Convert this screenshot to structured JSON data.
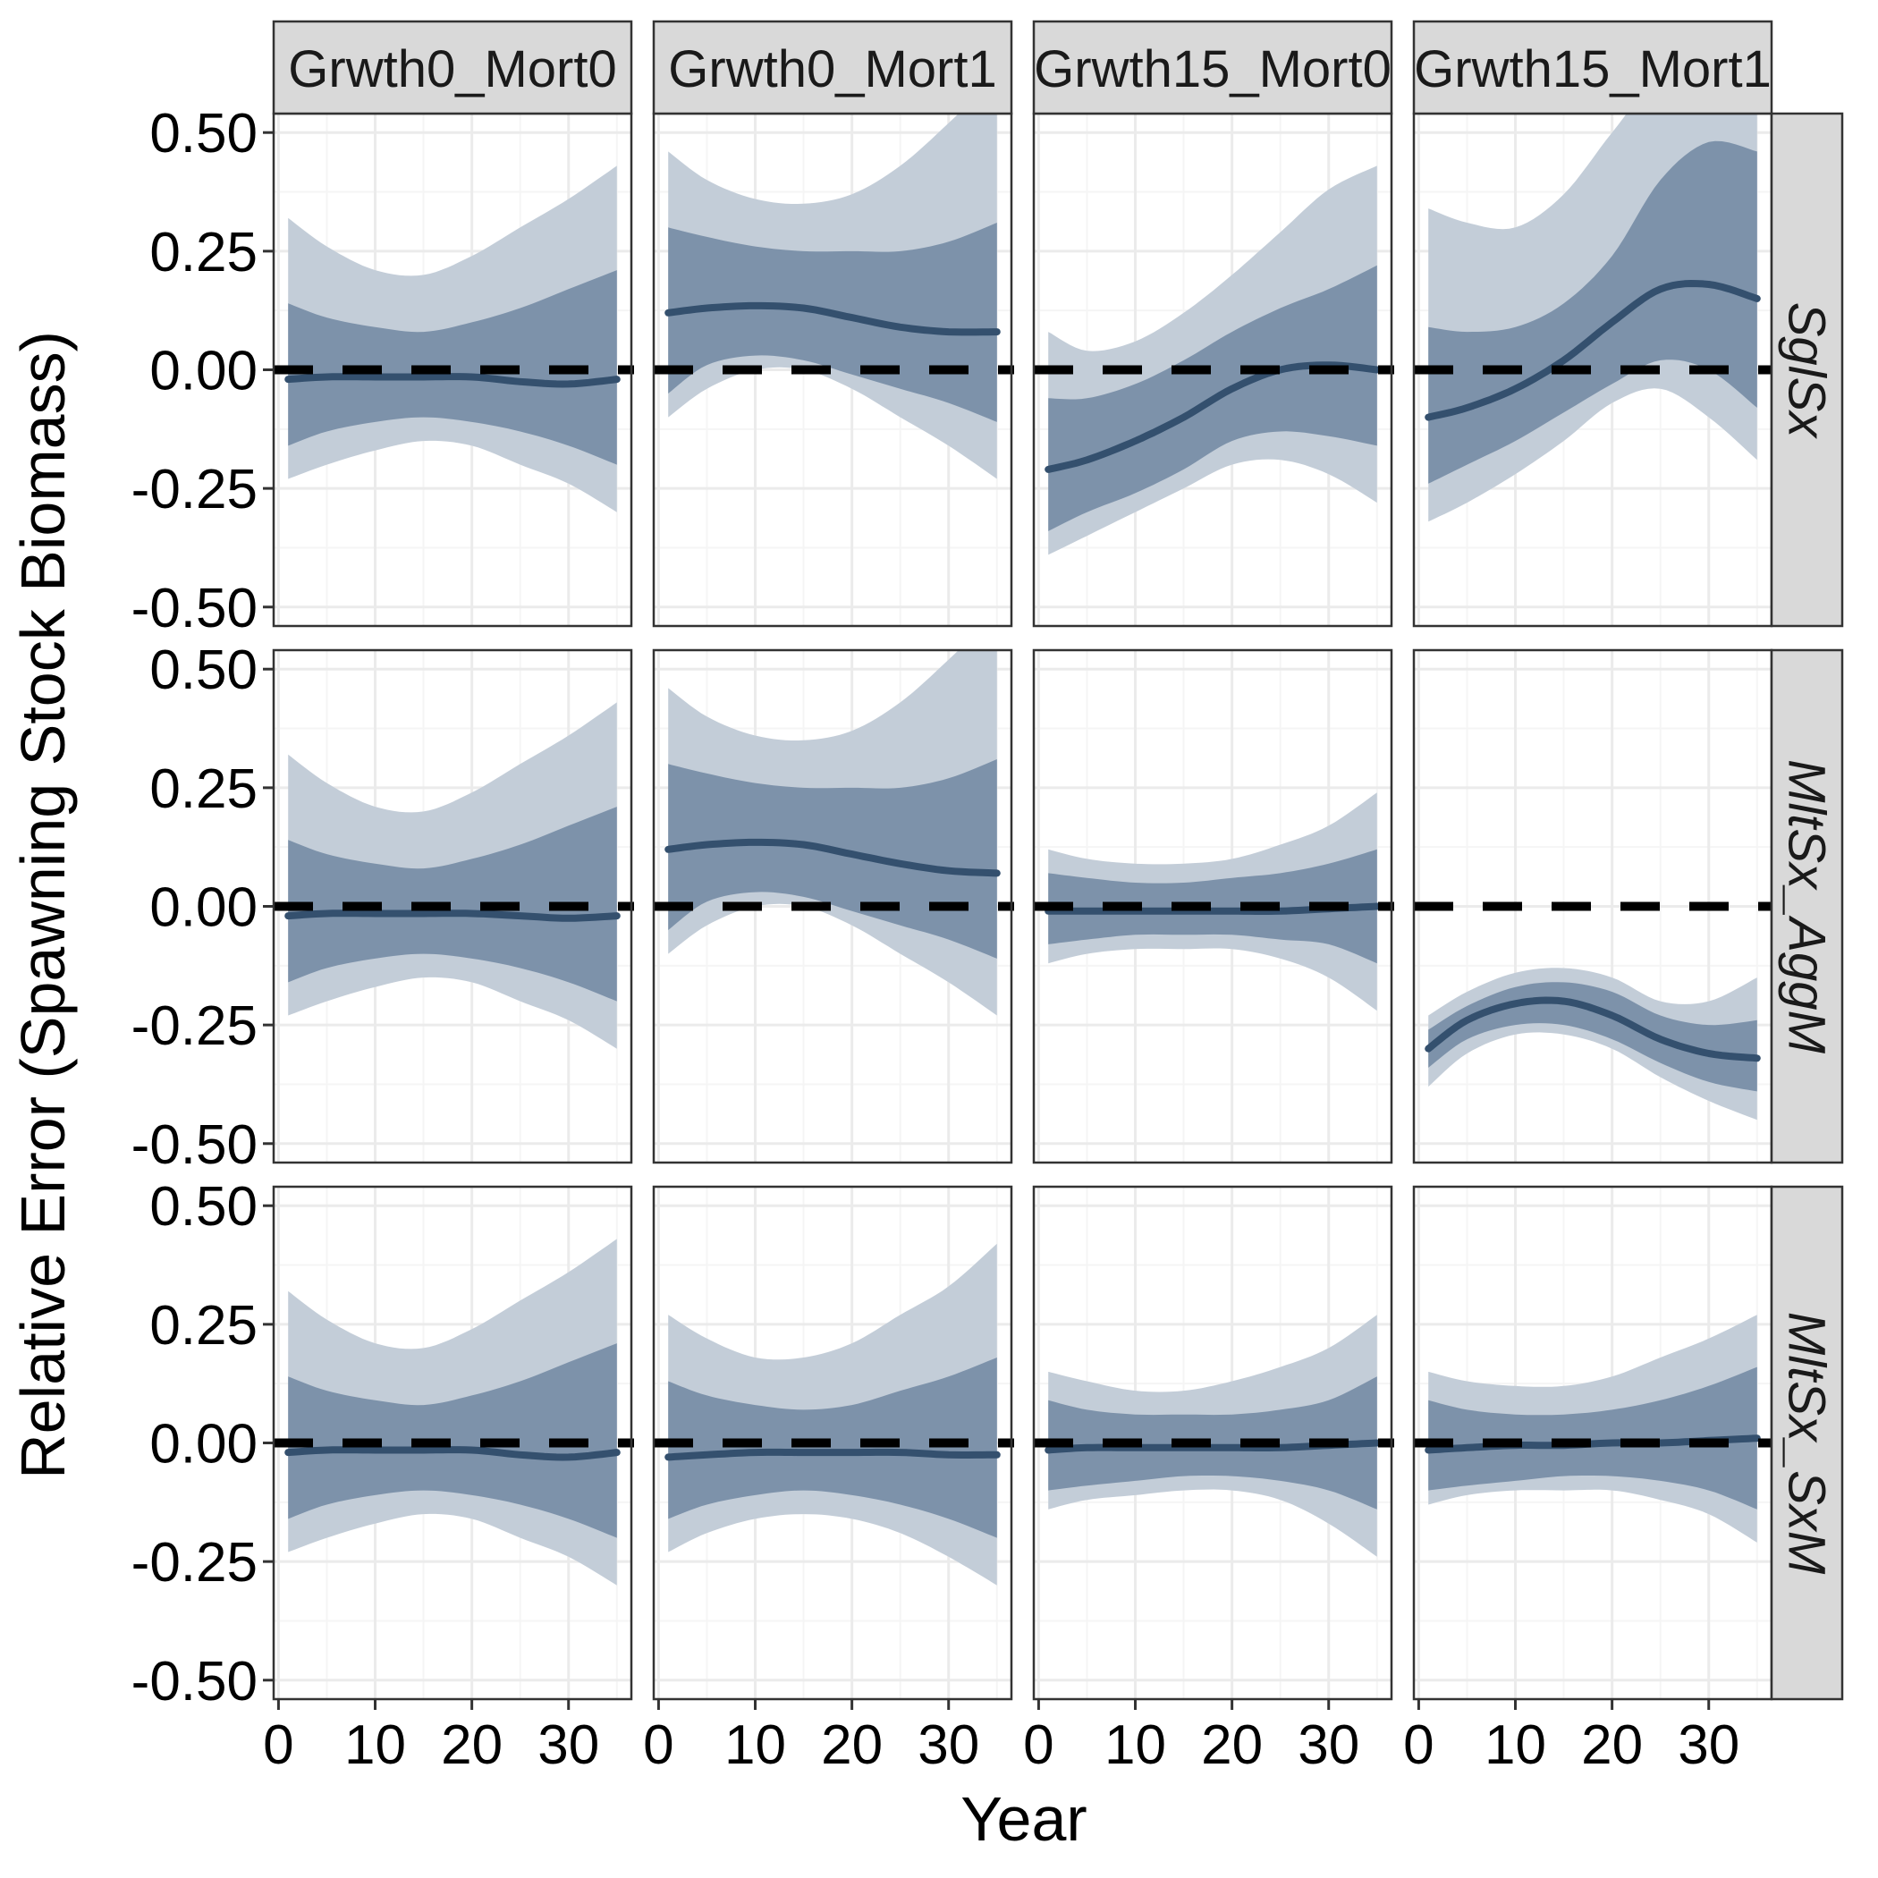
{
  "chart_data": {
    "type": "area",
    "xlabel": "Year",
    "ylabel": "Relative Error (Spawning Stock Biomass)",
    "x_ticks": [
      0,
      10,
      20,
      30
    ],
    "y_ticks": [
      -0.5,
      -0.25,
      0,
      0.25,
      0.5
    ],
    "y_tick_labels": [
      "-0.50",
      "-0.25",
      "0.00",
      "0.25",
      "0.50"
    ],
    "xlim": [
      -0.5,
      36.5
    ],
    "ylim": [
      -0.54,
      0.54
    ],
    "reference_line": 0,
    "grid": true,
    "colors": {
      "line": "#34506e",
      "inner_band": "#7d92aa",
      "outer_band": "#c3cdd8",
      "reference": "#000000",
      "strip_fill": "#d9d9d9",
      "grid_major": "#ebebeb",
      "grid_minor": "#f5f5f5"
    },
    "column_strips": [
      "Grwth0_Mort0",
      "Grwth0_Mort1",
      "Grwth15_Mort0",
      "Grwth15_Mort1"
    ],
    "row_strips": [
      "SglSx",
      "MltSx_AggM",
      "MltSx_SxM"
    ],
    "band_x": [
      1,
      5,
      10,
      15,
      20,
      25,
      30,
      35
    ],
    "panels": [
      {
        "row": 0,
        "col": 0,
        "median": [
          -0.02,
          -0.015,
          -0.015,
          -0.015,
          -0.015,
          -0.025,
          -0.03,
          -0.02
        ],
        "inner_low": [
          -0.16,
          -0.13,
          -0.11,
          -0.1,
          -0.11,
          -0.13,
          -0.16,
          -0.2
        ],
        "inner_high": [
          0.14,
          0.11,
          0.09,
          0.08,
          0.1,
          0.13,
          0.17,
          0.21
        ],
        "outer_low": [
          -0.23,
          -0.2,
          -0.17,
          -0.15,
          -0.16,
          -0.2,
          -0.24,
          -0.3
        ],
        "outer_high": [
          0.32,
          0.26,
          0.21,
          0.2,
          0.24,
          0.3,
          0.36,
          0.43
        ]
      },
      {
        "row": 0,
        "col": 1,
        "median": [
          0.12,
          0.13,
          0.135,
          0.13,
          0.11,
          0.09,
          0.08,
          0.08
        ],
        "inner_low": [
          -0.05,
          0.01,
          0.03,
          0.02,
          -0.01,
          -0.04,
          -0.07,
          -0.11
        ],
        "inner_high": [
          0.3,
          0.28,
          0.26,
          0.25,
          0.25,
          0.25,
          0.27,
          0.31
        ],
        "outer_low": [
          -0.1,
          -0.04,
          0.0,
          0.0,
          -0.04,
          -0.1,
          -0.16,
          -0.23
        ],
        "outer_high": [
          0.46,
          0.4,
          0.36,
          0.35,
          0.37,
          0.43,
          0.52,
          0.62
        ]
      },
      {
        "row": 0,
        "col": 2,
        "median": [
          -0.21,
          -0.19,
          -0.15,
          -0.1,
          -0.04,
          0.0,
          0.01,
          0.0
        ],
        "inner_low": [
          -0.34,
          -0.3,
          -0.26,
          -0.21,
          -0.15,
          -0.13,
          -0.14,
          -0.16
        ],
        "inner_high": [
          -0.06,
          -0.06,
          -0.03,
          0.02,
          0.08,
          0.13,
          0.17,
          0.22
        ],
        "outer_low": [
          -0.39,
          -0.35,
          -0.3,
          -0.25,
          -0.2,
          -0.19,
          -0.22,
          -0.28
        ],
        "outer_high": [
          0.08,
          0.04,
          0.06,
          0.12,
          0.2,
          0.29,
          0.38,
          0.43
        ]
      },
      {
        "row": 0,
        "col": 3,
        "median": [
          -0.1,
          -0.08,
          -0.04,
          0.02,
          0.1,
          0.17,
          0.18,
          0.15
        ],
        "inner_low": [
          -0.24,
          -0.2,
          -0.15,
          -0.09,
          -0.03,
          0.02,
          0.0,
          -0.08
        ],
        "inner_high": [
          0.09,
          0.08,
          0.09,
          0.14,
          0.24,
          0.4,
          0.48,
          0.46
        ],
        "outer_low": [
          -0.32,
          -0.28,
          -0.22,
          -0.15,
          -0.07,
          -0.04,
          -0.1,
          -0.19
        ],
        "outer_high": [
          0.34,
          0.31,
          0.3,
          0.37,
          0.5,
          0.62,
          0.64,
          0.63
        ]
      },
      {
        "row": 1,
        "col": 0,
        "median": [
          -0.02,
          -0.015,
          -0.015,
          -0.015,
          -0.015,
          -0.02,
          -0.025,
          -0.02
        ],
        "inner_low": [
          -0.16,
          -0.13,
          -0.11,
          -0.1,
          -0.11,
          -0.13,
          -0.16,
          -0.2
        ],
        "inner_high": [
          0.14,
          0.11,
          0.09,
          0.08,
          0.1,
          0.13,
          0.17,
          0.21
        ],
        "outer_low": [
          -0.23,
          -0.2,
          -0.17,
          -0.15,
          -0.16,
          -0.2,
          -0.24,
          -0.3
        ],
        "outer_high": [
          0.32,
          0.26,
          0.21,
          0.2,
          0.24,
          0.3,
          0.36,
          0.43
        ]
      },
      {
        "row": 1,
        "col": 1,
        "median": [
          0.12,
          0.13,
          0.135,
          0.13,
          0.11,
          0.09,
          0.075,
          0.07
        ],
        "inner_low": [
          -0.05,
          0.01,
          0.03,
          0.02,
          -0.01,
          -0.04,
          -0.07,
          -0.11
        ],
        "inner_high": [
          0.3,
          0.28,
          0.26,
          0.25,
          0.25,
          0.25,
          0.27,
          0.31
        ],
        "outer_low": [
          -0.1,
          -0.04,
          0.0,
          0.0,
          -0.04,
          -0.1,
          -0.16,
          -0.23
        ],
        "outer_high": [
          0.46,
          0.4,
          0.36,
          0.35,
          0.37,
          0.43,
          0.52,
          0.62
        ]
      },
      {
        "row": 1,
        "col": 2,
        "median": [
          -0.01,
          -0.01,
          -0.01,
          -0.01,
          -0.01,
          -0.01,
          -0.005,
          0.0
        ],
        "inner_low": [
          -0.08,
          -0.07,
          -0.06,
          -0.06,
          -0.06,
          -0.07,
          -0.08,
          -0.12
        ],
        "inner_high": [
          0.07,
          0.06,
          0.05,
          0.05,
          0.06,
          0.07,
          0.09,
          0.12
        ],
        "outer_low": [
          -0.12,
          -0.1,
          -0.09,
          -0.09,
          -0.09,
          -0.11,
          -0.15,
          -0.22
        ],
        "outer_high": [
          0.12,
          0.1,
          0.09,
          0.09,
          0.1,
          0.13,
          0.17,
          0.24
        ]
      },
      {
        "row": 1,
        "col": 3,
        "median": [
          -0.3,
          -0.24,
          -0.205,
          -0.2,
          -0.23,
          -0.28,
          -0.31,
          -0.32
        ],
        "inner_low": [
          -0.34,
          -0.28,
          -0.25,
          -0.25,
          -0.28,
          -0.33,
          -0.37,
          -0.39
        ],
        "inner_high": [
          -0.26,
          -0.21,
          -0.17,
          -0.16,
          -0.18,
          -0.23,
          -0.25,
          -0.24
        ],
        "outer_low": [
          -0.38,
          -0.31,
          -0.27,
          -0.27,
          -0.3,
          -0.36,
          -0.41,
          -0.45
        ],
        "outer_high": [
          -0.23,
          -0.18,
          -0.14,
          -0.13,
          -0.15,
          -0.2,
          -0.2,
          -0.15
        ]
      },
      {
        "row": 2,
        "col": 0,
        "median": [
          -0.02,
          -0.015,
          -0.015,
          -0.015,
          -0.015,
          -0.025,
          -0.03,
          -0.02
        ],
        "inner_low": [
          -0.16,
          -0.13,
          -0.11,
          -0.1,
          -0.11,
          -0.13,
          -0.16,
          -0.2
        ],
        "inner_high": [
          0.14,
          0.11,
          0.09,
          0.08,
          0.1,
          0.13,
          0.17,
          0.21
        ],
        "outer_low": [
          -0.23,
          -0.2,
          -0.17,
          -0.15,
          -0.16,
          -0.2,
          -0.24,
          -0.3
        ],
        "outer_high": [
          0.32,
          0.26,
          0.21,
          0.2,
          0.24,
          0.3,
          0.36,
          0.43
        ]
      },
      {
        "row": 2,
        "col": 1,
        "median": [
          -0.03,
          -0.025,
          -0.02,
          -0.02,
          -0.02,
          -0.02,
          -0.025,
          -0.025
        ],
        "inner_low": [
          -0.16,
          -0.13,
          -0.11,
          -0.1,
          -0.11,
          -0.13,
          -0.16,
          -0.2
        ],
        "inner_high": [
          0.13,
          0.1,
          0.08,
          0.07,
          0.08,
          0.11,
          0.14,
          0.18
        ],
        "outer_low": [
          -0.23,
          -0.19,
          -0.16,
          -0.15,
          -0.16,
          -0.19,
          -0.24,
          -0.3
        ],
        "outer_high": [
          0.27,
          0.22,
          0.18,
          0.18,
          0.21,
          0.27,
          0.33,
          0.42
        ]
      },
      {
        "row": 2,
        "col": 2,
        "median": [
          -0.015,
          -0.01,
          -0.01,
          -0.01,
          -0.01,
          -0.01,
          -0.005,
          0.0
        ],
        "inner_low": [
          -0.1,
          -0.09,
          -0.08,
          -0.07,
          -0.07,
          -0.08,
          -0.1,
          -0.14
        ],
        "inner_high": [
          0.09,
          0.07,
          0.06,
          0.06,
          0.06,
          0.07,
          0.09,
          0.14
        ],
        "outer_low": [
          -0.14,
          -0.12,
          -0.11,
          -0.1,
          -0.1,
          -0.12,
          -0.17,
          -0.24
        ],
        "outer_high": [
          0.15,
          0.13,
          0.11,
          0.11,
          0.13,
          0.16,
          0.2,
          0.27
        ]
      },
      {
        "row": 2,
        "col": 3,
        "median": [
          -0.015,
          -0.01,
          -0.005,
          -0.005,
          0.0,
          0.0,
          0.005,
          0.01
        ],
        "inner_low": [
          -0.1,
          -0.09,
          -0.08,
          -0.07,
          -0.07,
          -0.08,
          -0.1,
          -0.14
        ],
        "inner_high": [
          0.09,
          0.07,
          0.06,
          0.06,
          0.07,
          0.09,
          0.12,
          0.16
        ],
        "outer_low": [
          -0.13,
          -0.11,
          -0.1,
          -0.1,
          -0.1,
          -0.12,
          -0.15,
          -0.21
        ],
        "outer_high": [
          0.15,
          0.13,
          0.12,
          0.12,
          0.14,
          0.18,
          0.22,
          0.27
        ]
      }
    ]
  }
}
